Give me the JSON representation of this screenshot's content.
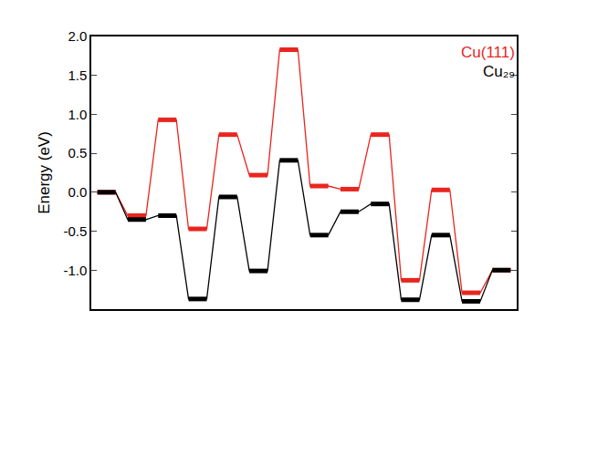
{
  "chart_data": {
    "type": "line",
    "y_label": "Energy (eV)",
    "categories": [
      null,
      null,
      null,
      null,
      null,
      null,
      null,
      null,
      null,
      null,
      null,
      null,
      null,
      null
    ],
    "series": [
      {
        "name": "Cu(111)",
        "color": "#e8261f",
        "values": [
          0.0,
          -0.3,
          0.93,
          -0.47,
          0.74,
          0.22,
          1.83,
          0.08,
          0.04,
          0.74,
          -1.13,
          0.03,
          -1.29,
          -1.0
        ]
      },
      {
        "name": "Cu₂₉",
        "color": "#000000",
        "values": [
          0.0,
          -0.35,
          -0.3,
          -1.37,
          -0.06,
          -1.01,
          0.41,
          -0.55,
          -0.25,
          -0.15,
          -1.38,
          -0.55,
          -1.4,
          -1.0
        ]
      }
    ],
    "ylim": [
      -1.5,
      2.0
    ],
    "yticks": [
      {
        "value": -1.0,
        "label": "-1.0"
      },
      {
        "value": -0.5,
        "label": "-0.5"
      },
      {
        "value": 0.0,
        "label": "0.0"
      },
      {
        "value": 0.5,
        "label": "0.5"
      },
      {
        "value": 1.0,
        "label": "1.0"
      },
      {
        "value": 1.5,
        "label": "1.5"
      },
      {
        "value": 2.0,
        "label": "2.0"
      }
    ],
    "tick_labels": "y",
    "legend": "upper right",
    "grid": false
  }
}
